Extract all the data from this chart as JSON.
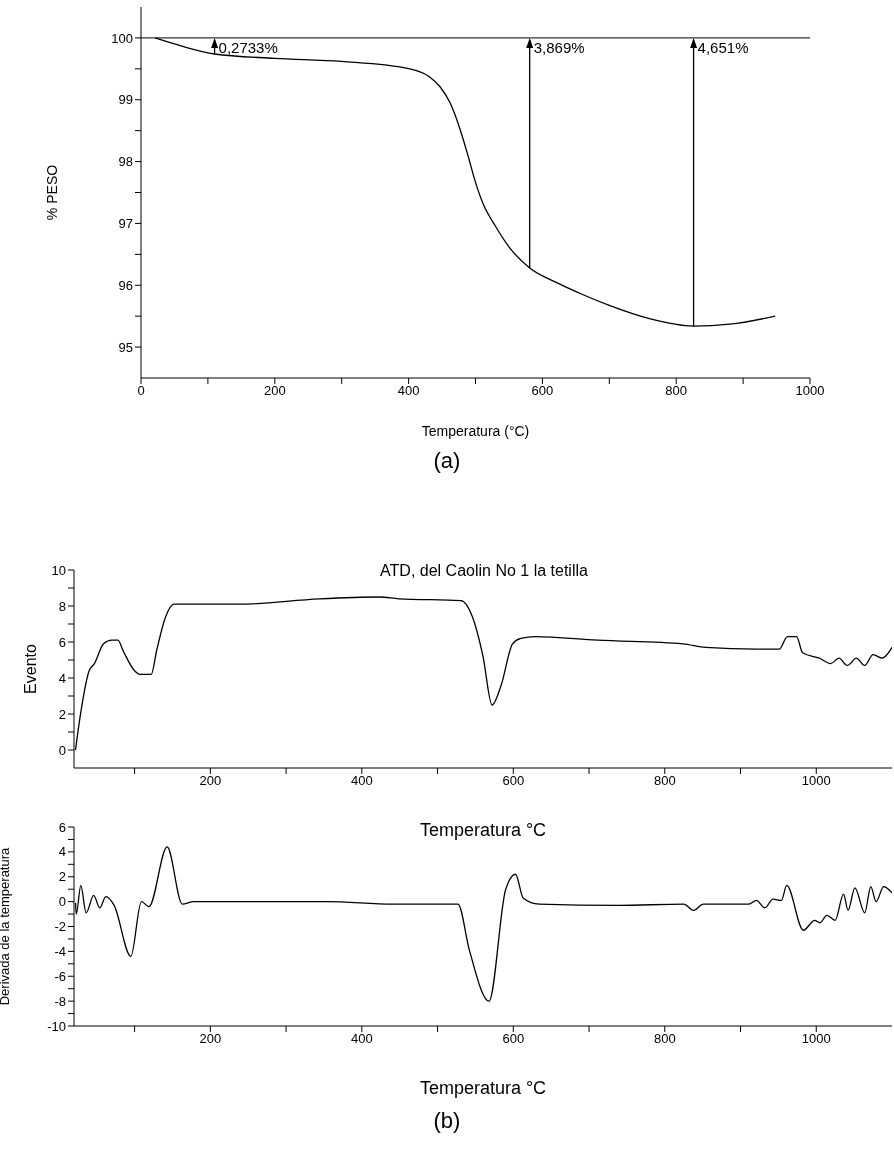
{
  "chart_data": [
    {
      "type": "line",
      "xlabel": "Temperatura (°C)",
      "ylabel": "% PESO",
      "color": "#000000",
      "x": [
        21,
        60,
        110,
        200,
        300,
        402,
        430,
        447,
        462,
        477,
        490,
        499,
        512,
        529,
        550,
        581,
        620,
        660,
        701,
        760,
        826,
        880,
        948
      ],
      "values": [
        100,
        99.87,
        99.74,
        99.67,
        99.62,
        99.5,
        99.38,
        99.21,
        98.95,
        98.52,
        98.05,
        97.7,
        97.3,
        96.97,
        96.62,
        96.28,
        96.05,
        95.85,
        95.67,
        95.46,
        95.34,
        95.37,
        95.5
      ],
      "xlim": [
        0,
        1000
      ],
      "xticks": [
        0,
        {
          "value": 100,
          "label": null
        },
        200,
        {
          "value": 300,
          "label": null
        },
        400,
        {
          "value": 500,
          "label": null
        },
        600,
        {
          "value": 700,
          "label": null
        },
        800,
        {
          "value": 900,
          "label": null
        },
        1000
      ],
      "ylim": [
        94.5,
        100.5
      ],
      "yticks": [
        95,
        {
          "value": 95.5,
          "label": null
        },
        96,
        {
          "value": 96.5,
          "label": null
        },
        97,
        {
          "value": 97.5,
          "label": null
        },
        98,
        {
          "value": 98.5,
          "label": null
        },
        99,
        {
          "value": 99.5,
          "label": null
        },
        100
      ],
      "ref_lines": [
        {
          "axis": "y",
          "value": 100,
          "color": "#000000"
        }
      ],
      "annotations": [
        {
          "text": "0,2733%",
          "x": 110,
          "y": 100
        },
        {
          "text": "3,869%",
          "x": 581,
          "y": 100
        },
        {
          "text": "4,651%",
          "x": 826,
          "y": 100
        },
        "(a)"
      ]
    },
    {
      "type": "line",
      "title": "ATD, del Caolin No 1 la tetilla",
      "xlabel": "Temperatura °C",
      "ylabel": "Evento",
      "color": "#000000",
      "x": [
        22,
        29,
        40,
        47,
        59,
        70,
        78,
        85,
        100,
        107,
        122,
        129,
        141,
        152,
        171,
        239,
        344,
        423,
        449,
        531,
        546,
        560,
        572,
        584,
        599,
        610,
        629,
        711,
        824,
        854,
        921,
        951,
        962,
        974,
        982,
        1004,
        1019,
        1030,
        1041,
        1053,
        1064,
        1075,
        1087,
        1100
      ],
      "values": [
        0,
        2.1,
        4.4,
        4.8,
        5.9,
        6.1,
        6.1,
        5.5,
        4.4,
        4.2,
        4.2,
        5.5,
        7.4,
        8.1,
        8.1,
        8.1,
        8.4,
        8.5,
        8.4,
        8.3,
        7.4,
        5.2,
        2.5,
        3.6,
        5.9,
        6.2,
        6.3,
        6.1,
        5.9,
        5.7,
        5.6,
        5.6,
        6.3,
        6.3,
        5.4,
        5.1,
        4.8,
        5.1,
        4.7,
        5.1,
        4.7,
        5.3,
        5.1,
        5.7
      ],
      "xlim": [
        20,
        1100
      ],
      "xticks": [
        {
          "value": 100,
          "label": null
        },
        200,
        {
          "value": 300,
          "label": null
        },
        400,
        {
          "value": 500,
          "label": null
        },
        600,
        {
          "value": 700,
          "label": null
        },
        800,
        {
          "value": 900,
          "label": null
        },
        1000
      ],
      "ylim": [
        -1,
        10
      ],
      "yticks": [
        0,
        {
          "value": 1,
          "label": null
        },
        2,
        {
          "value": 3,
          "label": null
        },
        4,
        {
          "value": 5,
          "label": null
        },
        6,
        {
          "value": 7,
          "label": null
        },
        8,
        {
          "value": 9,
          "label": null
        },
        10
      ]
    },
    {
      "type": "line",
      "xlabel": "Temperatura °C",
      "ylabel": "Derivada de la temperatura",
      "color": "#000000",
      "x": [
        22,
        23,
        29,
        36,
        46,
        54,
        62,
        73,
        95,
        109,
        119,
        143,
        163,
        178,
        354,
        441,
        527,
        542,
        568,
        590,
        603,
        613,
        634,
        739,
        825,
        838,
        851,
        911,
        921,
        932,
        943,
        954,
        961,
        983,
        998,
        1005,
        1014,
        1025,
        1036,
        1042,
        1051,
        1064,
        1072,
        1079,
        1089,
        1100
      ],
      "values": [
        -0.1,
        -1,
        1.3,
        -0.9,
        0.5,
        -0.5,
        0.4,
        -0.3,
        -4.4,
        0,
        -0.4,
        4.4,
        -0.2,
        0,
        0,
        -0.2,
        -0.2,
        -3.9,
        -8,
        1,
        2.2,
        0.3,
        -0.2,
        -0.3,
        -0.2,
        -0.7,
        -0.2,
        -0.2,
        0.1,
        -0.5,
        0.2,
        0.1,
        1.3,
        -2.3,
        -1.5,
        -1.7,
        -1.1,
        -1.5,
        0.6,
        -0.7,
        1.1,
        -0.9,
        1.2,
        0,
        1.2,
        0.7
      ],
      "xlim": [
        20,
        1100
      ],
      "xticks": [
        {
          "value": 100,
          "label": null
        },
        200,
        {
          "value": 300,
          "label": null
        },
        400,
        {
          "value": 500,
          "label": null
        },
        600,
        {
          "value": 700,
          "label": null
        },
        800,
        {
          "value": 900,
          "label": null
        },
        1000
      ],
      "ylim": [
        -10,
        6
      ],
      "yticks": [
        -10,
        {
          "value": -9,
          "label": null
        },
        -8,
        {
          "value": -7,
          "label": null
        },
        -6,
        {
          "value": -5,
          "label": null
        },
        -4,
        {
          "value": -3,
          "label": null
        },
        -2,
        {
          "value": -1,
          "label": null
        },
        0,
        {
          "value": 1,
          "label": null
        },
        2,
        {
          "value": 3,
          "label": null
        },
        4,
        {
          "value": 5,
          "label": null
        },
        6
      ],
      "annotations": [
        "(b)"
      ]
    }
  ]
}
